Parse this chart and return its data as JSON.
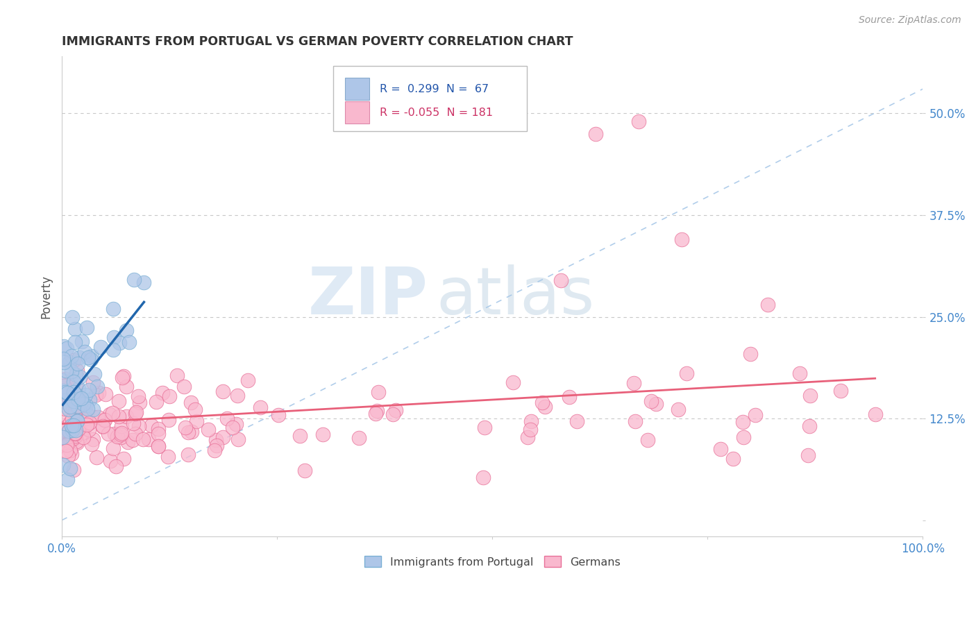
{
  "title": "IMMIGRANTS FROM PORTUGAL VS GERMAN POVERTY CORRELATION CHART",
  "source_text": "Source: ZipAtlas.com",
  "ylabel": "Poverty",
  "xlim": [
    0.0,
    1.0
  ],
  "ylim": [
    -0.02,
    0.57
  ],
  "ytick_values": [
    0.0,
    0.125,
    0.25,
    0.375,
    0.5
  ],
  "ytick_labels": [
    "",
    "12.5%",
    "25.0%",
    "37.5%",
    "50.0%"
  ],
  "xtick_values": [
    0.0,
    0.25,
    0.5,
    0.75,
    1.0
  ],
  "xtick_labels": [
    "0.0%",
    "",
    "",
    "",
    "100.0%"
  ],
  "watermark_zip": "ZIP",
  "watermark_atlas": "atlas",
  "series1_color": "#aec6e8",
  "series1_edge": "#7aafd4",
  "series1_line_color": "#2166ac",
  "series1_label": "Immigrants from Portugal",
  "series1_R": 0.299,
  "series1_N": 67,
  "series2_color": "#f9b8ce",
  "series2_edge": "#e87098",
  "series2_line_color": "#e8607a",
  "series2_label": "Germans",
  "series2_R": -0.055,
  "series2_N": 181,
  "diag_line_color": "#a8c8e8",
  "grid_color": "#c8c8c8",
  "background_color": "#ffffff",
  "title_color": "#333333",
  "tick_color": "#4488cc",
  "legend_box_color1": "#aec6e8",
  "legend_box_color2": "#f9b8ce",
  "legend_text_color": "#2255aa",
  "legend_r1_text": "R =  0.299  N =  67",
  "legend_r2_text": "R = -0.055  N = 181"
}
